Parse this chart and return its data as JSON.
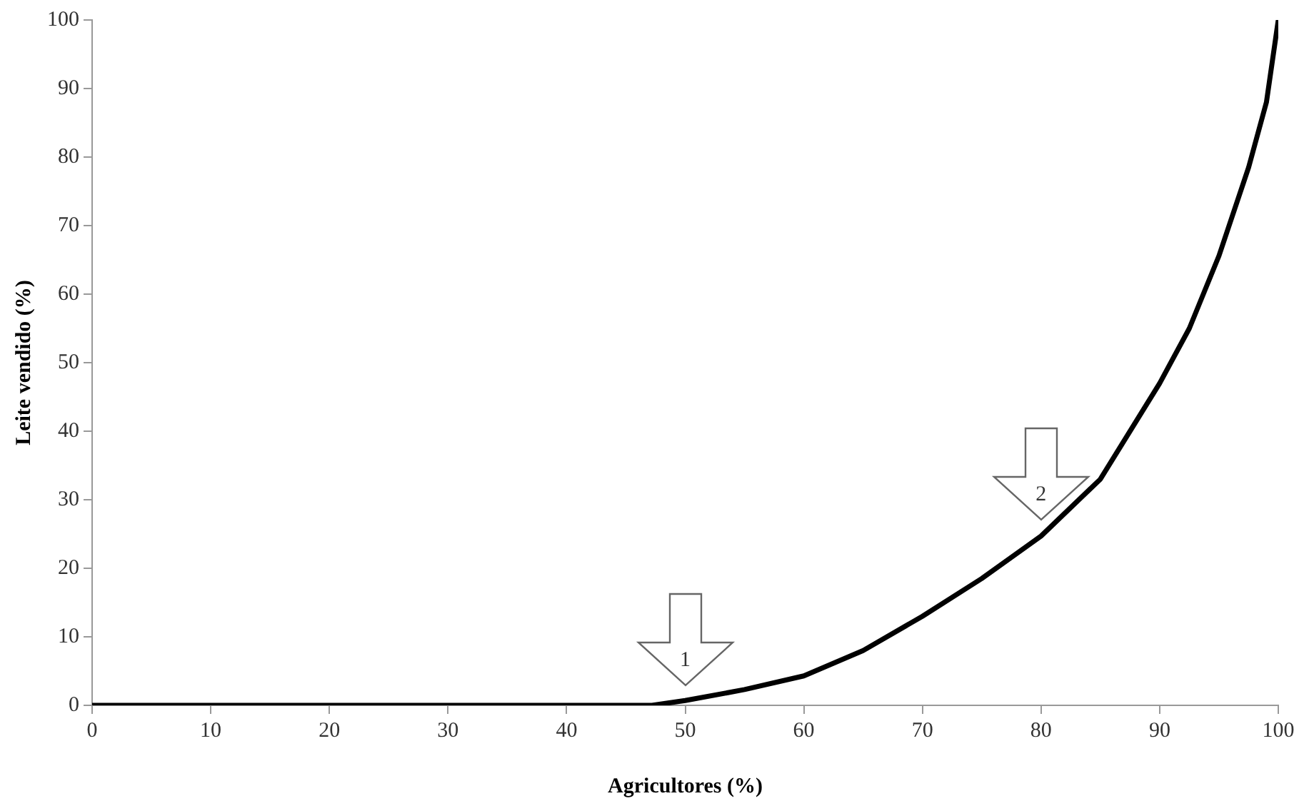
{
  "chart_data": {
    "type": "line",
    "xlabel": "Agricultores (%)",
    "ylabel": "Leite vendido (%)",
    "series": [
      {
        "color": "#000000",
        "x": [
          0,
          10,
          20,
          30,
          40,
          47.2,
          50,
          55,
          60,
          65,
          70,
          75,
          80,
          85,
          90,
          92.5,
          95,
          97.5,
          99,
          100
        ],
        "values": [
          0,
          0,
          0,
          0,
          0,
          0,
          0.7,
          2.3,
          4.3,
          8,
          13,
          18.5,
          24.7,
          33,
          47,
          55,
          65.6,
          78.5,
          88,
          100
        ]
      }
    ],
    "xlim": [
      0,
      100
    ],
    "xticks": [
      0,
      10,
      20,
      30,
      40,
      50,
      60,
      70,
      80,
      90,
      100
    ],
    "ylim": [
      0,
      100
    ],
    "yticks": [
      0,
      10,
      20,
      30,
      40,
      50,
      60,
      70,
      80,
      90,
      100
    ],
    "grid": false,
    "legend": false,
    "marker": "none",
    "line_style": "solid",
    "annotations": [
      {
        "text": "1",
        "x": 50,
        "y": 0.7
      },
      {
        "text": "2",
        "x": 80,
        "y": 24.7
      }
    ]
  }
}
